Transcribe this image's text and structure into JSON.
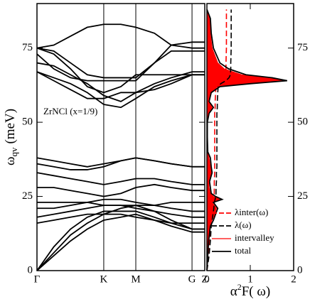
{
  "chart_data": [
    {
      "type": "line",
      "ylabel": [
        "ω",
        "qv",
        "(meV)"
      ],
      "annotation": "ZrNCl (x=1/9)",
      "x": [
        0,
        0.1,
        0.2,
        0.3,
        0.398,
        0.5,
        0.589,
        0.7,
        0.8,
        0.924,
        1.0
      ],
      "xlim": [
        0,
        1
      ],
      "xticks": [
        {
          "value": 0,
          "label": "Γ"
        },
        {
          "value": 0.398,
          "label": "K"
        },
        {
          "value": 0.589,
          "label": "M"
        },
        {
          "value": 0.924,
          "label": "G"
        },
        {
          "value": 1.0,
          "label": "Z"
        }
      ],
      "xgrid": true,
      "ylim": [
        0,
        90
      ],
      "yticks": [
        0,
        25,
        50,
        75
      ],
      "series": [
        {
          "color": "#000000",
          "values": [
            0,
            5,
            10,
            14,
            17,
            18,
            19,
            17,
            15,
            13,
            13
          ]
        },
        {
          "color": "#000000",
          "values": [
            0,
            6,
            12,
            16,
            19,
            21,
            22,
            20,
            17,
            14,
            14
          ]
        },
        {
          "color": "#000000",
          "values": [
            0,
            8,
            14,
            18,
            20,
            20,
            20,
            18,
            16,
            14,
            14
          ]
        },
        {
          "color": "#000000",
          "values": [
            16,
            17,
            18,
            19,
            19,
            19,
            18,
            17,
            16,
            16,
            16
          ]
        },
        {
          "color": "#000000",
          "values": [
            18,
            19,
            20,
            21,
            22,
            22,
            21,
            20,
            19,
            18,
            18
          ]
        },
        {
          "color": "#000000",
          "values": [
            21,
            21,
            22,
            23,
            24,
            24,
            23,
            22,
            21,
            20,
            20
          ]
        },
        {
          "color": "#000000",
          "values": [
            23,
            23,
            23,
            23,
            22,
            22,
            22,
            22,
            23,
            23,
            23
          ]
        },
        {
          "color": "#000000",
          "values": [
            28,
            28,
            27,
            26,
            25,
            26,
            28,
            29,
            28,
            27,
            27
          ]
        },
        {
          "color": "#000000",
          "values": [
            33,
            32,
            31,
            30,
            29,
            30,
            31,
            31,
            30,
            29,
            29
          ]
        },
        {
          "color": "#000000",
          "values": [
            36,
            35,
            34,
            34,
            35,
            37,
            38,
            37,
            36,
            35,
            35
          ]
        },
        {
          "color": "#000000",
          "values": [
            38,
            37,
            36,
            35,
            36,
            37,
            38,
            37,
            36,
            35,
            35
          ]
        },
        {
          "color": "#000000",
          "values": [
            67,
            64,
            61,
            58,
            58,
            60,
            60,
            61,
            63,
            66,
            66
          ]
        },
        {
          "color": "#000000",
          "values": [
            67,
            65,
            63,
            60,
            56,
            55,
            58,
            62,
            64,
            66,
            66
          ]
        },
        {
          "color": "#000000",
          "values": [
            70,
            69,
            66,
            63,
            59,
            57,
            60,
            63,
            65,
            67,
            67
          ]
        },
        {
          "color": "#000000",
          "values": [
            75,
            73,
            68,
            62,
            60,
            62,
            66,
            66,
            66,
            66,
            66
          ]
        },
        {
          "color": "#000000",
          "values": [
            75,
            76,
            79,
            82,
            83,
            83,
            82,
            80,
            76,
            75,
            75
          ]
        },
        {
          "color": "#000000",
          "values": [
            75,
            74,
            70,
            66,
            65,
            65,
            65,
            70,
            74,
            74,
            74
          ]
        },
        {
          "color": "#000000",
          "values": [
            73,
            68,
            65,
            64,
            64,
            64,
            64,
            70,
            76,
            77,
            77
          ]
        }
      ]
    },
    {
      "type": "line",
      "xlabel": [
        "α",
        "2",
        "F( ω)"
      ],
      "y": [
        0,
        5,
        10,
        15,
        17,
        19,
        21,
        23,
        24,
        25,
        26,
        28,
        30,
        33,
        35,
        38,
        40,
        45,
        50,
        53,
        55,
        57,
        60,
        62,
        63,
        64,
        65,
        66,
        68,
        70,
        75,
        80,
        85,
        88
      ],
      "xlim": [
        0,
        2
      ],
      "xticks": [
        0,
        1,
        2
      ],
      "ylim": [
        0,
        90
      ],
      "yticks": [
        0,
        25,
        50,
        75
      ],
      "series": [
        {
          "name": "λinter(ω)",
          "color": "#ff0000",
          "style": "dashed",
          "values": [
            0,
            0.04,
            0.06,
            0.08,
            0.09,
            0.11,
            0.13,
            0.14,
            0.15,
            0.16,
            0.17,
            0.17,
            0.17,
            0.18,
            0.18,
            0.18,
            0.18,
            0.18,
            0.18,
            0.18,
            0.19,
            0.19,
            0.2,
            0.21,
            0.26,
            0.35,
            0.41,
            0.43,
            0.44,
            0.44,
            0.45,
            0.45,
            0.45,
            0.45
          ]
        },
        {
          "name": "λ(ω)",
          "color": "#000000",
          "style": "dashed",
          "values": [
            0,
            0.05,
            0.08,
            0.1,
            0.12,
            0.14,
            0.16,
            0.17,
            0.19,
            0.2,
            0.21,
            0.21,
            0.22,
            0.22,
            0.23,
            0.23,
            0.23,
            0.23,
            0.23,
            0.23,
            0.24,
            0.24,
            0.25,
            0.26,
            0.32,
            0.44,
            0.51,
            0.54,
            0.55,
            0.55,
            0.56,
            0.56,
            0.56,
            0.56
          ]
        },
        {
          "name": "intervalley",
          "color": "#ff0000",
          "style": "fill",
          "values": [
            0,
            0.01,
            0.03,
            0.06,
            0.12,
            0.18,
            0.22,
            0.12,
            0.3,
            0.15,
            0.08,
            0.05,
            0.04,
            0.1,
            0.08,
            0.05,
            0.01,
            0,
            0,
            0.04,
            0.12,
            0.03,
            0.08,
            0.25,
            0.9,
            1.75,
            1.4,
            0.8,
            0.4,
            0.25,
            0.12,
            0.08,
            0.06,
            0
          ]
        },
        {
          "name": "total",
          "color": "#000000",
          "style": "solid",
          "values": [
            0,
            0.02,
            0.04,
            0.08,
            0.15,
            0.2,
            0.25,
            0.15,
            0.35,
            0.2,
            0.1,
            0.08,
            0.06,
            0.12,
            0.1,
            0.08,
            0.02,
            0.01,
            0.01,
            0.05,
            0.15,
            0.05,
            0.1,
            0.3,
            1.0,
            1.85,
            1.5,
            0.9,
            0.5,
            0.3,
            0.15,
            0.1,
            0.08,
            0
          ]
        }
      ]
    }
  ]
}
